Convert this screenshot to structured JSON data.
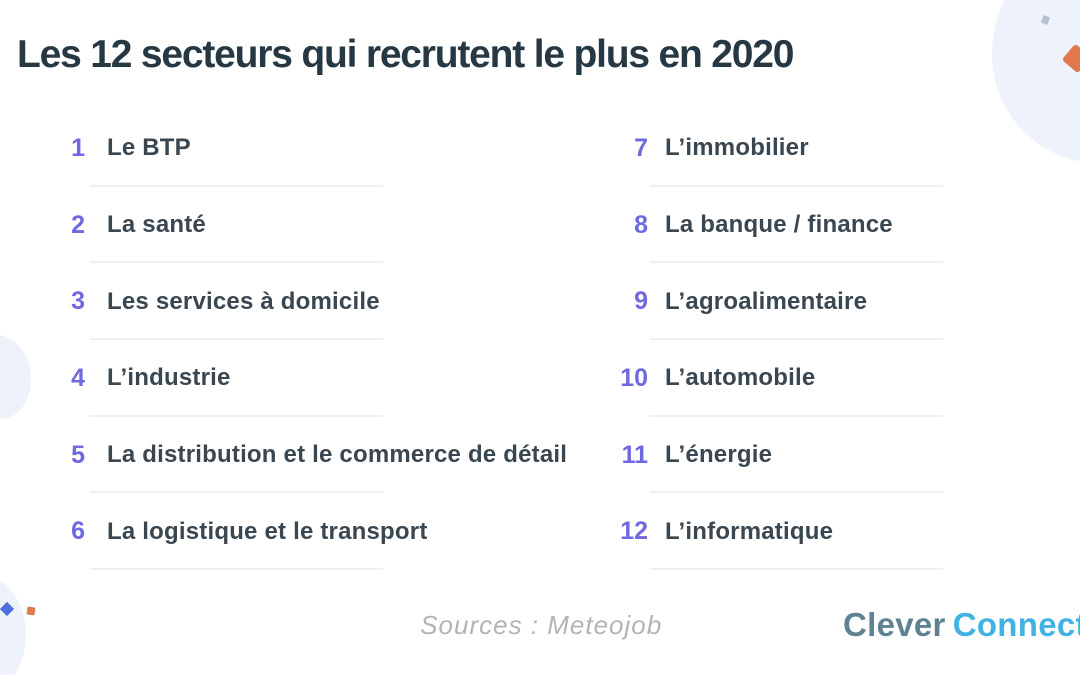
{
  "title": "Les 12 secteurs qui recrutent le plus en 2020",
  "list": {
    "left": [
      {
        "num": "1",
        "label": "Le BTP"
      },
      {
        "num": "2",
        "label": "La santé"
      },
      {
        "num": "3",
        "label": "Les services à domicile"
      },
      {
        "num": "4",
        "label": "L’industrie"
      },
      {
        "num": "5",
        "label": "La distribution et le commerce de détail"
      },
      {
        "num": "6",
        "label": "La logistique et le transport"
      }
    ],
    "right": [
      {
        "num": "7",
        "label": "L’immobilier"
      },
      {
        "num": "8",
        "label": "La banque / finance"
      },
      {
        "num": "9",
        "label": "L’agroalimentaire"
      },
      {
        "num": "10",
        "label": "L’automobile"
      },
      {
        "num": "11",
        "label": "L’énergie"
      },
      {
        "num": "12",
        "label": "L’informatique"
      }
    ]
  },
  "footer": {
    "sources": "Sources : Meteojob",
    "brand": {
      "first": "Clever",
      "second": "Connect"
    }
  },
  "colors": {
    "accent_purple": "#7068df",
    "title_text": "#253843",
    "item_text": "#3a4750",
    "divider": "#f0f0f1",
    "blob_blue": "#edf2fb",
    "accent_orange": "#e0774f",
    "deco_gray": "#b9c0d2",
    "deco_blue_diamond": "#4f6fe0",
    "brand_gray_blue": "#5e8193",
    "brand_light_blue": "#41b2e4",
    "sources_gray": "#b4b4b4"
  }
}
